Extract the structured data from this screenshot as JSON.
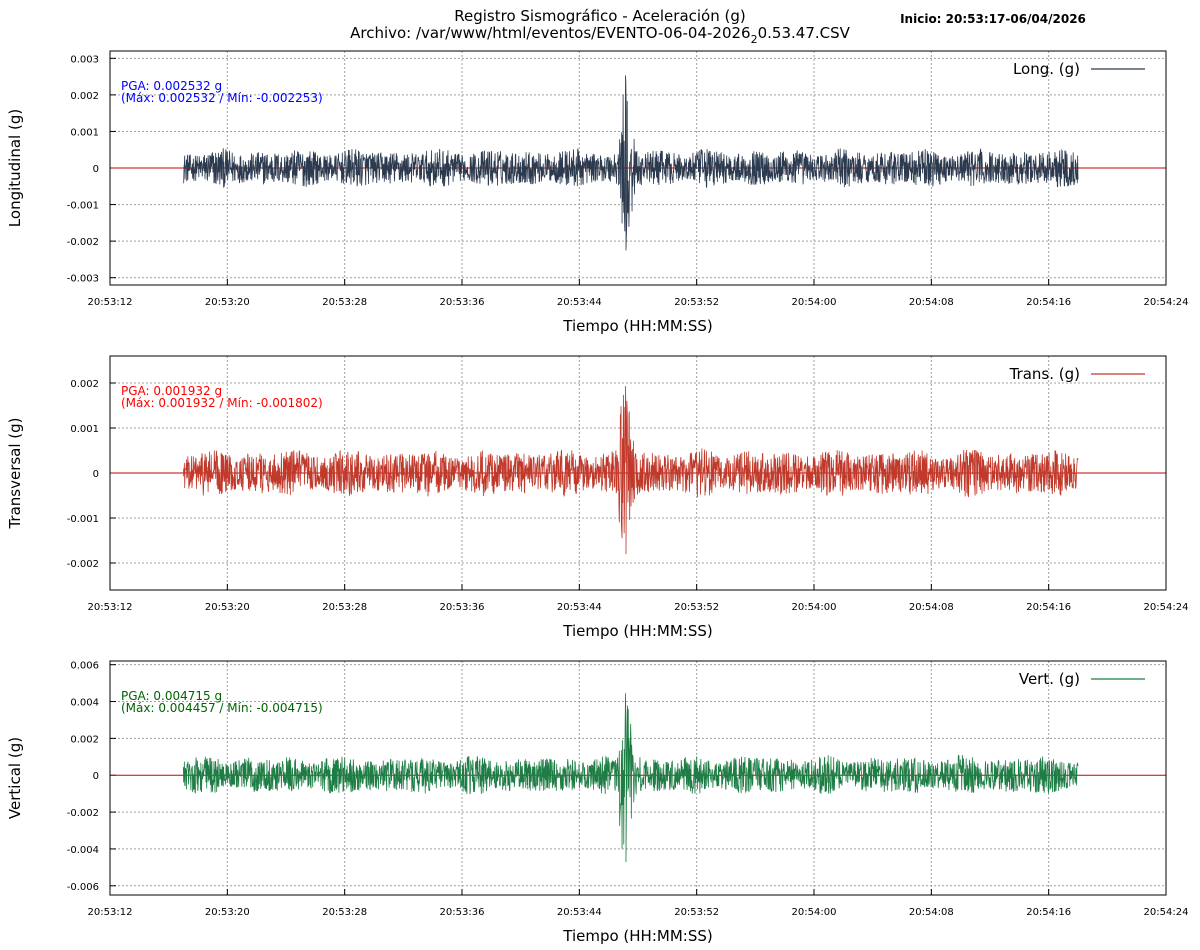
{
  "header": {
    "title_line1": "Registro Sismográfico - Aceleración (g)",
    "title_line2_prefix": "Archivo: /var/www/html/eventos/EVENTO-06-04-2026",
    "title_line2_sub": "2",
    "title_line2_suffix": "0.53.47.CSV",
    "inicio": "Inicio: 20:53:17-06/04/2026"
  },
  "chart_data": [
    {
      "type": "line",
      "ylabel": "Longitudinal (g)",
      "xlabel": "Tiempo (HH:MM:SS)",
      "legend": "Long. (g)",
      "legend_position": "top-right",
      "color": "#2b3a4e",
      "grid": true,
      "xlim": [
        "20:53:12",
        "20:54:24"
      ],
      "x_ticks": [
        "20:53:12",
        "20:53:20",
        "20:53:28",
        "20:53:36",
        "20:53:44",
        "20:53:52",
        "20:54:00",
        "20:54:08",
        "20:54:16",
        "20:54:24"
      ],
      "ylim": [
        -0.0032,
        0.0032
      ],
      "y_ticks": [
        "0.003",
        "0.002",
        "0.001",
        "0",
        "-0.001",
        "-0.002",
        "-0.003"
      ],
      "y_tick_values": [
        0.003,
        0.002,
        0.001,
        0,
        -0.001,
        -0.002,
        -0.003
      ],
      "data_range": [
        "20:53:17",
        "20:54:18"
      ],
      "noise_amplitude": 0.00055,
      "event_time": "20:53:47",
      "event_max": 0.002532,
      "event_min": -0.002253,
      "pga_label": "PGA: 0.002532 g",
      "maxmin_label": "(Máx: 0.002532 / Mín: -0.002253)",
      "note_color": "#0000ff",
      "zero_line_color": "#cc0000"
    },
    {
      "type": "line",
      "ylabel": "Transversal (g)",
      "xlabel": "Tiempo (HH:MM:SS)",
      "legend": "Trans. (g)",
      "legend_position": "top-right",
      "color": "#c0392b",
      "grid": true,
      "xlim": [
        "20:53:12",
        "20:54:24"
      ],
      "x_ticks": [
        "20:53:12",
        "20:53:20",
        "20:53:28",
        "20:53:36",
        "20:53:44",
        "20:53:52",
        "20:54:00",
        "20:54:08",
        "20:54:16",
        "20:54:24"
      ],
      "ylim": [
        -0.0026,
        0.0026
      ],
      "y_ticks": [
        "0.002",
        "0.001",
        "0",
        "-0.001",
        "-0.002"
      ],
      "y_tick_values": [
        0.002,
        0.001,
        0,
        -0.001,
        -0.002
      ],
      "data_range": [
        "20:53:17",
        "20:54:18"
      ],
      "noise_amplitude": 0.00055,
      "event_time": "20:53:47",
      "event_max": 0.001932,
      "event_min": -0.001802,
      "pga_label": "PGA: 0.001932 g",
      "maxmin_label": "(Máx: 0.001932 / Mín: -0.001802)",
      "note_color": "#ff0000",
      "zero_line_color": "#cc0000"
    },
    {
      "type": "line",
      "ylabel": "Vertical (g)",
      "xlabel": "Tiempo (HH:MM:SS)",
      "legend": "Vert. (g)",
      "legend_position": "top-right",
      "color": "#1e7d45",
      "grid": true,
      "xlim": [
        "20:53:12",
        "20:54:24"
      ],
      "x_ticks": [
        "20:53:12",
        "20:53:20",
        "20:53:28",
        "20:53:36",
        "20:53:44",
        "20:53:52",
        "20:54:00",
        "20:54:08",
        "20:54:16",
        "20:54:24"
      ],
      "ylim": [
        -0.0065,
        0.0062
      ],
      "y_ticks": [
        "0.006",
        "0.004",
        "0.002",
        "0",
        "-0.002",
        "-0.004",
        "-0.006"
      ],
      "y_tick_values": [
        0.006,
        0.004,
        0.002,
        0,
        -0.002,
        -0.004,
        -0.006
      ],
      "data_range": [
        "20:53:17",
        "20:54:18"
      ],
      "noise_amplitude": 0.0011,
      "event_time": "20:53:47",
      "event_max": 0.004457,
      "event_min": -0.004715,
      "pga_label": "PGA: 0.004715 g",
      "maxmin_label": "(Máx: 0.004457 / Mín: -0.004715)",
      "note_color": "#006400",
      "zero_line_color": "#cc0000"
    }
  ]
}
